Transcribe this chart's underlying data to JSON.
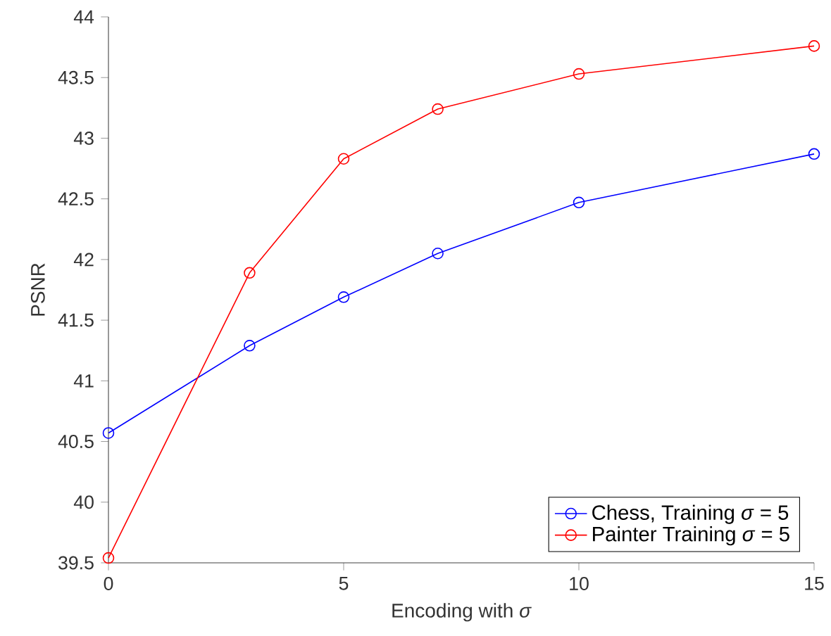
{
  "chart_data": {
    "type": "line",
    "xlabel": "Encoding with *σ*",
    "ylabel": "PSNR",
    "x": [
      0,
      3,
      5,
      7,
      10,
      15
    ],
    "series": [
      {
        "name": "Chess, Training    *σ* = 5",
        "color": "#0000ff",
        "values": [
          40.57,
          41.29,
          41.69,
          42.05,
          42.47,
          42.87
        ]
      },
      {
        "name": "Painter Training    *σ* = 5",
        "color": "#ff0000",
        "values": [
          39.54,
          41.89,
          42.83,
          43.24,
          43.53,
          43.76
        ]
      }
    ],
    "xlim": [
      0,
      15
    ],
    "xticks": [
      0,
      5,
      10,
      15
    ],
    "ylim": [
      39.5,
      44
    ],
    "yticks": [
      39.5,
      40,
      40.5,
      41,
      41.5,
      42,
      42.5,
      43,
      43.5,
      44
    ],
    "grid": false,
    "legend": "bottom right",
    "marker": "circle",
    "line_style": "solid"
  }
}
